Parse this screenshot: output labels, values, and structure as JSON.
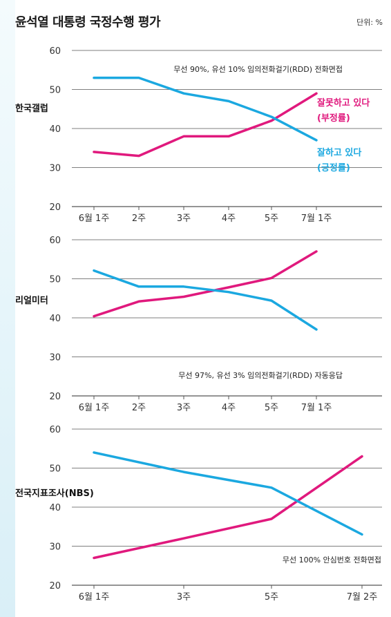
{
  "header": {
    "title": "윤석열 대통령 국정수행 평가",
    "unit": "단위: %"
  },
  "colors": {
    "negative": "#e0197d",
    "positive": "#1ba8e0",
    "grid": "#555555",
    "background_strip": "#dff1f8"
  },
  "chart_data": [
    {
      "type": "line",
      "panel_label": "한국갤럽",
      "note": "무선 90%, 유선 10% 임의전화걸기(RDD) 전화면접",
      "categories": [
        "6월 1주",
        "2주",
        "3주",
        "4주",
        "5주",
        "7월 1주"
      ],
      "ylim": [
        20,
        60
      ],
      "yticks": [
        20,
        30,
        40,
        50,
        60
      ],
      "series": [
        {
          "key": "negative",
          "values": [
            34,
            33,
            38,
            38,
            42,
            49
          ]
        },
        {
          "key": "positive",
          "values": [
            53,
            53,
            49,
            47,
            43,
            37
          ]
        }
      ],
      "annotations": [
        {
          "key": "negative",
          "lines": [
            "잘못하고 있다",
            "(부정률)"
          ]
        },
        {
          "key": "positive",
          "lines": [
            "잘하고 있다",
            "(긍정률)"
          ]
        }
      ]
    },
    {
      "type": "line",
      "panel_label": "리얼미터",
      "note": "무선 97%, 유선 3% 임의전화걸기(RDD) 자동응답",
      "categories": [
        "6월 1주",
        "2주",
        "3주",
        "4주",
        "5주",
        "7월 1주"
      ],
      "ylim": [
        20,
        60
      ],
      "yticks": [
        20,
        30,
        40,
        50,
        60
      ],
      "series": [
        {
          "key": "negative",
          "values": [
            40.4,
            44.2,
            45.4,
            47.8,
            50.2,
            57
          ]
        },
        {
          "key": "positive",
          "values": [
            52.1,
            48.0,
            48.0,
            46.6,
            44.4,
            37.0
          ]
        }
      ]
    },
    {
      "type": "line",
      "panel_label": "전국지표조사(NBS)",
      "note": "무선 100% 안심번호 전화면접",
      "categories": [
        "6월 1주",
        "3주",
        "5주",
        "7월 2주"
      ],
      "category_positions": [
        0,
        2,
        4,
        6
      ],
      "ylim": [
        20,
        60
      ],
      "yticks": [
        20,
        30,
        40,
        50,
        60
      ],
      "series": [
        {
          "key": "negative",
          "values": [
            27,
            32,
            37,
            53
          ]
        },
        {
          "key": "positive",
          "values": [
            54,
            49,
            45,
            33
          ]
        }
      ]
    }
  ]
}
